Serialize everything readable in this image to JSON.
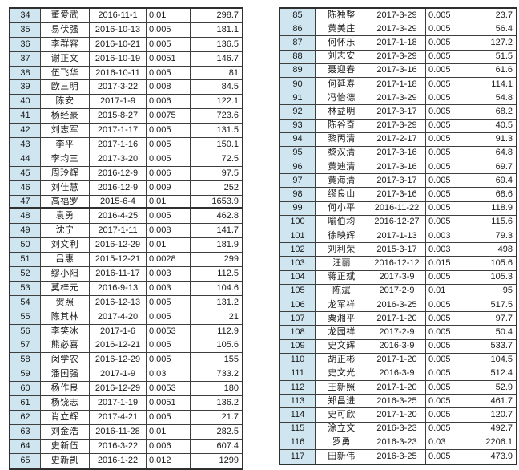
{
  "colors": {
    "page_bg": "#ffffff",
    "index_bg": "#cfe6f1",
    "border": "#3e3e3e",
    "border_heavy": "#2f2f2f",
    "text": "#1a1a1a"
  },
  "tables": [
    {
      "id": "left",
      "thick_border_after_no": "47",
      "rows": [
        {
          "no": "34",
          "name": "董爱武",
          "date": "2016-11-1",
          "rate": "0.01",
          "amount": "298.7"
        },
        {
          "no": "35",
          "name": "易伏强",
          "date": "2016-10-13",
          "rate": "0.005",
          "amount": "181.1"
        },
        {
          "no": "36",
          "name": "李群容",
          "date": "2016-10-21",
          "rate": "0.005",
          "amount": "136.5"
        },
        {
          "no": "37",
          "name": "谢正文",
          "date": "2016-10-19",
          "rate": "0.0051",
          "amount": "146.7"
        },
        {
          "no": "38",
          "name": "伍飞华",
          "date": "2016-10-11",
          "rate": "0.005",
          "amount": "81"
        },
        {
          "no": "39",
          "name": "欧三明",
          "date": "2017-3-22",
          "rate": "0.008",
          "amount": "84.5"
        },
        {
          "no": "40",
          "name": "陈安",
          "date": "2017-1-9",
          "rate": "0.006",
          "amount": "122.1"
        },
        {
          "no": "41",
          "name": "杨经豪",
          "date": "2015-8-27",
          "rate": "0.0075",
          "amount": "723.6"
        },
        {
          "no": "42",
          "name": "刘志军",
          "date": "2017-1-17",
          "rate": "0.005",
          "amount": "131.5"
        },
        {
          "no": "43",
          "name": "李平",
          "date": "2017-1-16",
          "rate": "0.005",
          "amount": "150.1"
        },
        {
          "no": "44",
          "name": "李均三",
          "date": "2017-3-20",
          "rate": "0.005",
          "amount": "72.5"
        },
        {
          "no": "45",
          "name": "周玲辉",
          "date": "2016-12-9",
          "rate": "0.006",
          "amount": "97.5"
        },
        {
          "no": "46",
          "name": "刘佳慧",
          "date": "2016-12-9",
          "rate": "0.009",
          "amount": "252"
        },
        {
          "no": "47",
          "name": "高福罗",
          "date": "2015-6-4",
          "rate": "0.01",
          "amount": "1653.9"
        },
        {
          "no": "48",
          "name": "袁勇",
          "date": "2016-4-25",
          "rate": "0.005",
          "amount": "462.8"
        },
        {
          "no": "49",
          "name": "沈宁",
          "date": "2017-1-11",
          "rate": "0.008",
          "amount": "141.7"
        },
        {
          "no": "50",
          "name": "刘文利",
          "date": "2016-12-29",
          "rate": "0.01",
          "amount": "181.9"
        },
        {
          "no": "51",
          "name": "吕惠",
          "date": "2015-12-21",
          "rate": "0.0028",
          "amount": "299"
        },
        {
          "no": "52",
          "name": "缪小阳",
          "date": "2016-11-17",
          "rate": "0.003",
          "amount": "112.5"
        },
        {
          "no": "53",
          "name": "莫梓元",
          "date": "2016-9-13",
          "rate": "0.003",
          "amount": "104.6"
        },
        {
          "no": "54",
          "name": "贺照",
          "date": "2016-12-13",
          "rate": "0.005",
          "amount": "131.2"
        },
        {
          "no": "55",
          "name": "陈其林",
          "date": "2017-4-20",
          "rate": "0.005",
          "amount": "21"
        },
        {
          "no": "56",
          "name": "李笑冰",
          "date": "2017-1-6",
          "rate": "0.0053",
          "amount": "112.9"
        },
        {
          "no": "57",
          "name": "熊必喜",
          "date": "2016-12-21",
          "rate": "0.005",
          "amount": "105.6"
        },
        {
          "no": "58",
          "name": "闵学农",
          "date": "2016-12-29",
          "rate": "0.005",
          "amount": "155"
        },
        {
          "no": "59",
          "name": "潘国强",
          "date": "2017-1-9",
          "rate": "0.03",
          "amount": "733.2"
        },
        {
          "no": "60",
          "name": "杨作良",
          "date": "2016-12-29",
          "rate": "0.0053",
          "amount": "180"
        },
        {
          "no": "61",
          "name": "杨饶志",
          "date": "2017-1-19",
          "rate": "0.0051",
          "amount": "136.2"
        },
        {
          "no": "62",
          "name": "肖立辉",
          "date": "2017-4-21",
          "rate": "0.005",
          "amount": "21.7"
        },
        {
          "no": "63",
          "name": "刘金浩",
          "date": "2016-11-28",
          "rate": "0.01",
          "amount": "282.5"
        },
        {
          "no": "64",
          "name": "史新伍",
          "date": "2016-3-22",
          "rate": "0.006",
          "amount": "607.4"
        },
        {
          "no": "65",
          "name": "史新凯",
          "date": "2016-1-22",
          "rate": "0.012",
          "amount": "1299"
        }
      ]
    },
    {
      "id": "right",
      "thick_border_after_no": "",
      "rows": [
        {
          "no": "85",
          "name": "陈独整",
          "date": "2017-3-29",
          "rate": "0.005",
          "amount": "23.7"
        },
        {
          "no": "86",
          "name": "黄美庄",
          "date": "2017-3-29",
          "rate": "0.005",
          "amount": "56.4"
        },
        {
          "no": "87",
          "name": "何怀乐",
          "date": "2017-1-18",
          "rate": "0.005",
          "amount": "127.2"
        },
        {
          "no": "88",
          "name": "刘志安",
          "date": "2017-3-29",
          "rate": "0.005",
          "amount": "51.5"
        },
        {
          "no": "89",
          "name": "聂迎春",
          "date": "2017-3-16",
          "rate": "0.005",
          "amount": "61.6"
        },
        {
          "no": "90",
          "name": "何延寿",
          "date": "2017-1-18",
          "rate": "0.005",
          "amount": "114.1"
        },
        {
          "no": "91",
          "name": "冯怡德",
          "date": "2017-3-29",
          "rate": "0.005",
          "amount": "54.8"
        },
        {
          "no": "92",
          "name": "林益明",
          "date": "2017-3-17",
          "rate": "0.005",
          "amount": "68.2"
        },
        {
          "no": "93",
          "name": "陈谷奇",
          "date": "2017-3-29",
          "rate": "0.005",
          "amount": "40.5"
        },
        {
          "no": "94",
          "name": "黎丙清",
          "date": "2017-2-17",
          "rate": "0.005",
          "amount": "91.3"
        },
        {
          "no": "95",
          "name": "黎汉清",
          "date": "2017-3-16",
          "rate": "0.005",
          "amount": "64.8"
        },
        {
          "no": "96",
          "name": "黄迪清",
          "date": "2017-3-16",
          "rate": "0.005",
          "amount": "69.7"
        },
        {
          "no": "97",
          "name": "黄海清",
          "date": "2017-3-17",
          "rate": "0.005",
          "amount": "69.4"
        },
        {
          "no": "98",
          "name": "缪良山",
          "date": "2017-3-16",
          "rate": "0.005",
          "amount": "68.6"
        },
        {
          "no": "99",
          "name": "何小平",
          "date": "2016-11-22",
          "rate": "0.005",
          "amount": "118.9"
        },
        {
          "no": "100",
          "name": "喻伯均",
          "date": "2016-12-27",
          "rate": "0.005",
          "amount": "115.6"
        },
        {
          "no": "101",
          "name": "徐映辉",
          "date": "2017-1-13",
          "rate": "0.003",
          "amount": "79.3"
        },
        {
          "no": "102",
          "name": "刘利荣",
          "date": "2015-3-17",
          "rate": "0.003",
          "amount": "498"
        },
        {
          "no": "103",
          "name": "汪丽",
          "date": "2016-12-12",
          "rate": "0.015",
          "amount": "105.6"
        },
        {
          "no": "104",
          "name": "蒋正斌",
          "date": "2017-3-9",
          "rate": "0.005",
          "amount": "105.3"
        },
        {
          "no": "105",
          "name": "陈斌",
          "date": "2017-2-9",
          "rate": "0.01",
          "amount": "95"
        },
        {
          "no": "106",
          "name": "龙军祥",
          "date": "2016-3-25",
          "rate": "0.005",
          "amount": "517.5"
        },
        {
          "no": "107",
          "name": "粟湘平",
          "date": "2017-1-20",
          "rate": "0.005",
          "amount": "97.7"
        },
        {
          "no": "108",
          "name": "龙园祥",
          "date": "2017-2-9",
          "rate": "0.005",
          "amount": "50.4"
        },
        {
          "no": "109",
          "name": "史文辉",
          "date": "2016-3-9",
          "rate": "0.005",
          "amount": "533.7"
        },
        {
          "no": "110",
          "name": "胡正彬",
          "date": "2017-1-20",
          "rate": "0.005",
          "amount": "104.5"
        },
        {
          "no": "111",
          "name": "史文光",
          "date": "2016-3-9",
          "rate": "0.005",
          "amount": "512.4"
        },
        {
          "no": "112",
          "name": "王新照",
          "date": "2017-1-20",
          "rate": "0.005",
          "amount": "52.9"
        },
        {
          "no": "113",
          "name": "郑昌进",
          "date": "2016-3-25",
          "rate": "0.005",
          "amount": "461.7"
        },
        {
          "no": "114",
          "name": "史可欣",
          "date": "2017-1-20",
          "rate": "0.005",
          "amount": "120.7"
        },
        {
          "no": "115",
          "name": "涂立文",
          "date": "2016-3-23",
          "rate": "0.005",
          "amount": "492.7"
        },
        {
          "no": "116",
          "name": "罗勇",
          "date": "2016-3-23",
          "rate": "0.03",
          "amount": "2206.1"
        },
        {
          "no": "117",
          "name": "田新伟",
          "date": "2016-3-25",
          "rate": "0.005",
          "amount": "473.9"
        }
      ]
    }
  ]
}
